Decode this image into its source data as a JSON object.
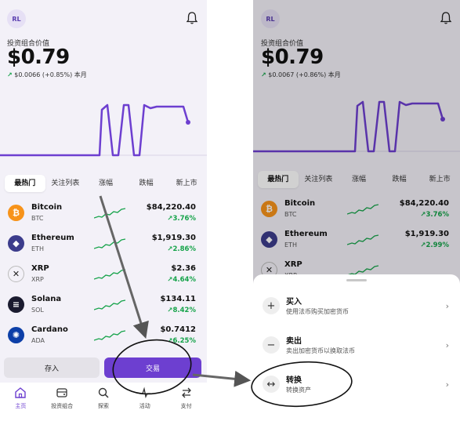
{
  "avatar_initials": "RL",
  "portfolio": {
    "label": "投资组合价值",
    "left": {
      "value": "$0.79",
      "change": "$0.0066 (+0.85%)",
      "period": "本月"
    },
    "right": {
      "value": "$0.79",
      "change": "$0.0067 (+0.86%)",
      "period": "本月"
    }
  },
  "tabs": [
    "最热门",
    "关注列表",
    "涨幅",
    "跌幅",
    "新上市"
  ],
  "coins_left": [
    {
      "name": "Bitcoin",
      "symbol": "BTC",
      "price": "$84,220.40",
      "change": "3.76%",
      "icon": "bitcoin-icon",
      "color": "#f7931a",
      "glyph": "₿"
    },
    {
      "name": "Ethereum",
      "symbol": "ETH",
      "price": "$1,919.30",
      "change": "2.86%",
      "icon": "ethereum-icon",
      "color": "#3c3c8c",
      "glyph": "◆"
    },
    {
      "name": "XRP",
      "symbol": "XRP",
      "price": "$2.36",
      "change": "4.64%",
      "icon": "xrp-icon",
      "color": "#f3f1f8",
      "glyph": "✕"
    },
    {
      "name": "Solana",
      "symbol": "SOL",
      "price": "$134.11",
      "change": "8.42%",
      "icon": "solana-icon",
      "color": "#1b1b2f",
      "glyph": "≡"
    },
    {
      "name": "Cardano",
      "symbol": "ADA",
      "price": "$0.7412",
      "change": "6.25%",
      "icon": "cardano-icon",
      "color": "#0d3fa8",
      "glyph": "✺"
    }
  ],
  "coins_right": [
    {
      "name": "Bitcoin",
      "symbol": "BTC",
      "price": "$84,220.40",
      "change": "3.76%",
      "icon": "bitcoin-icon",
      "color": "#f7931a",
      "glyph": "₿"
    },
    {
      "name": "Ethereum",
      "symbol": "ETH",
      "price": "$1,919.30",
      "change": "2.99%",
      "icon": "ethereum-icon",
      "color": "#3c3c8c",
      "glyph": "◆"
    },
    {
      "name": "XRP",
      "symbol": "XRP",
      "price": "",
      "change": "",
      "icon": "xrp-icon",
      "color": "#f3f1f8",
      "glyph": "✕"
    }
  ],
  "buttons": {
    "deposit": "存入",
    "trade": "交易"
  },
  "bottom_nav": [
    {
      "label": "主页",
      "icon": "home-icon",
      "active": true
    },
    {
      "label": "投资组合",
      "icon": "portfolio-icon",
      "active": false
    },
    {
      "label": "探索",
      "icon": "search-icon",
      "active": false
    },
    {
      "label": "活动",
      "icon": "activity-icon",
      "active": false
    },
    {
      "label": "支付",
      "icon": "transfer-icon",
      "active": false
    }
  ],
  "sheet": [
    {
      "title": "买入",
      "desc": "使用法币购买加密货币",
      "icon": "plus-icon",
      "glyph": "+"
    },
    {
      "title": "卖出",
      "desc": "卖出加密货币以换取法币",
      "icon": "minus-icon",
      "glyph": "−"
    },
    {
      "title": "转换",
      "desc": "转换资产",
      "icon": "convert-icon",
      "glyph": "↔"
    }
  ],
  "colors": {
    "accent": "#6d3fd0",
    "positive": "#16a34a"
  }
}
